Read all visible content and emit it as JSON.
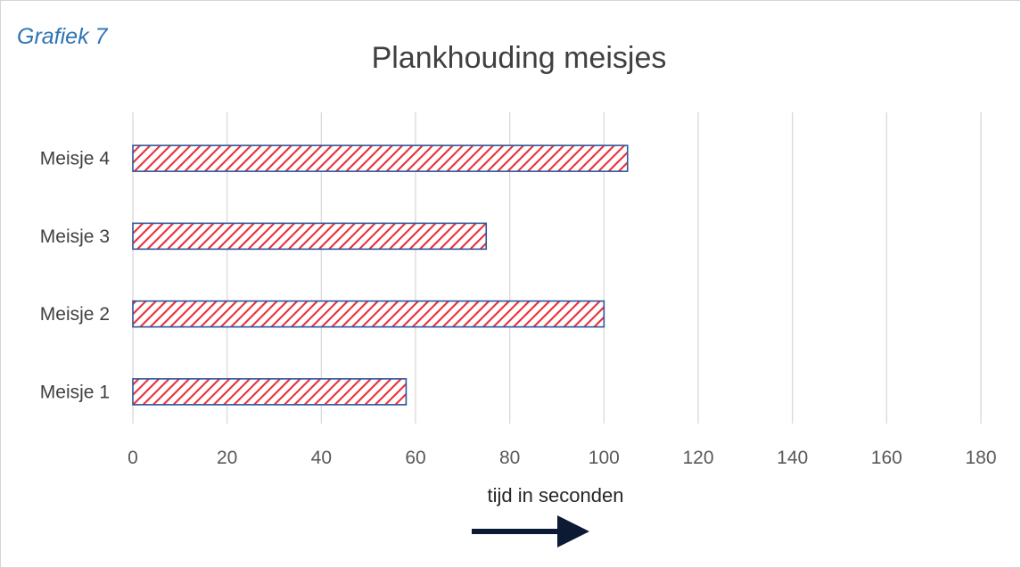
{
  "caption": "Grafiek 7",
  "chart_data": {
    "type": "bar",
    "orientation": "horizontal",
    "title": "Plankhouding meisjes",
    "xlabel": "tijd in seconden",
    "ylabel": "",
    "categories": [
      "Meisje 1",
      "Meisje 2",
      "Meisje 3",
      "Meisje 4"
    ],
    "values": [
      58,
      100,
      75,
      105
    ],
    "xlim": [
      0,
      180
    ],
    "xticks": [
      0,
      20,
      40,
      60,
      80,
      100,
      120,
      140,
      160,
      180
    ],
    "grid": true,
    "legend": "none",
    "bar_fill": "hatched red diagonal stripes on white",
    "colors": {
      "bar_hatch": "#e8303a",
      "bar_border": "#2f5597",
      "arrow": "#0d1a33",
      "caption": "#2e74b5"
    },
    "axis_annotation": "arrow pointing right below the x-axis label"
  }
}
